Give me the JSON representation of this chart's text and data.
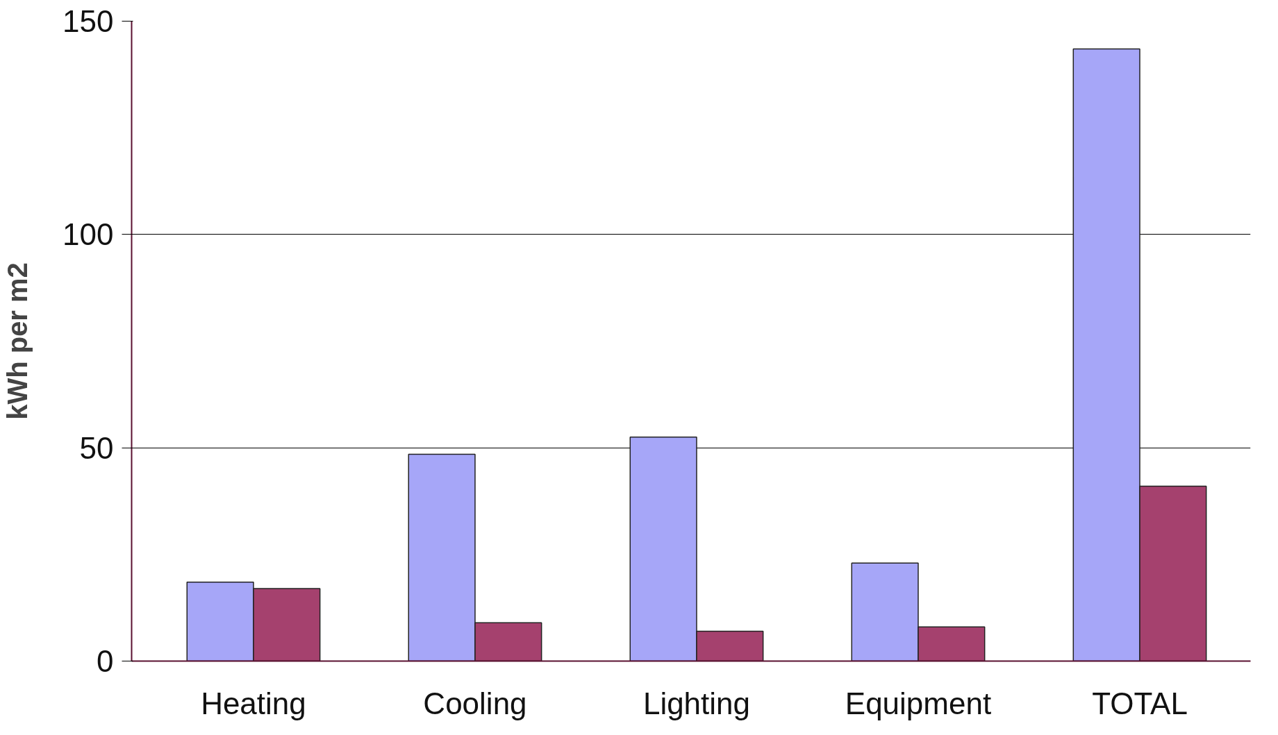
{
  "chart_data": {
    "type": "bar",
    "ylabel": "kWh per m2",
    "categories": [
      "Heating",
      "Cooling",
      "Lighting",
      "Equipment",
      "TOTAL"
    ],
    "series": [
      {
        "color": "#a6a6f8",
        "values": [
          18.5,
          48.5,
          52.5,
          23,
          143.5
        ]
      },
      {
        "color": "#a5416e",
        "values": [
          17,
          9,
          7,
          8,
          41
        ]
      }
    ],
    "ylim": [
      0,
      150
    ],
    "yticks": [
      0,
      50,
      100,
      150
    ],
    "grid": "y"
  }
}
